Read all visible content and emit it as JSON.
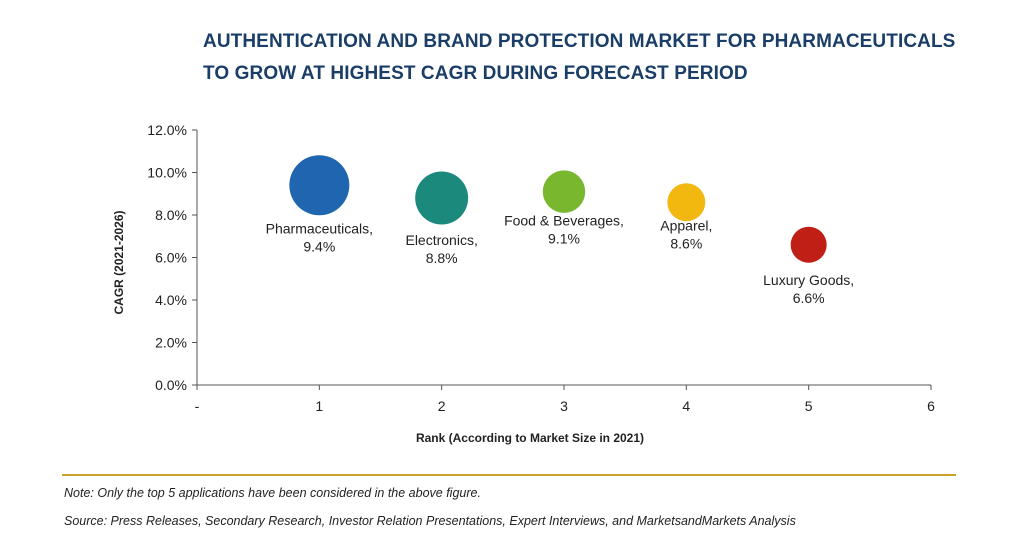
{
  "title_lines": [
    "AUTHENTICATION AND BRAND PROTECTION MARKET FOR PHARMACEUTICALS",
    "TO GROW AT HIGHEST CAGR DURING FORECAST PERIOD"
  ],
  "colors": {
    "title": "#1a3e67",
    "rule": "#c9a227"
  },
  "chart_data": {
    "type": "scatter",
    "bubble": true,
    "xlabel": "Rank (According to Market Size in 2021)",
    "ylabel": "CAGR (2021-2026)",
    "x_ticks": [
      "-",
      "1",
      "2",
      "3",
      "4",
      "5",
      "6"
    ],
    "xlim": [
      0,
      6
    ],
    "y_ticks": [
      "0.0%",
      "2.0%",
      "4.0%",
      "6.0%",
      "8.0%",
      "10.0%",
      "12.0%"
    ],
    "ylim": [
      0,
      12
    ],
    "grid": false,
    "points": [
      {
        "x": 1,
        "y": 9.4,
        "size": 1.0,
        "name": "Pharmaceuticals,",
        "value_label": "9.4%",
        "color": "#1f65b0"
      },
      {
        "x": 2,
        "y": 8.8,
        "size": 0.78,
        "name": "Electronics,",
        "value_label": "8.8%",
        "color": "#1b8a7d"
      },
      {
        "x": 3,
        "y": 9.1,
        "size": 0.5,
        "name": "Food & Beverages,",
        "value_label": "9.1%",
        "color": "#79b72e"
      },
      {
        "x": 4,
        "y": 8.6,
        "size": 0.4,
        "name": "Apparel,",
        "value_label": "8.6%",
        "color": "#f2b80f"
      },
      {
        "x": 5,
        "y": 6.6,
        "size": 0.36,
        "name": "Luxury Goods,",
        "value_label": "6.6%",
        "color": "#c01f16"
      }
    ]
  },
  "notes": {
    "note": "Note: Only the top 5 applications have been considered in the above figure.",
    "source": "Source: Press Releases, Secondary Research, Investor Relation Presentations, Expert Interviews, and MarketsandMarkets Analysis"
  }
}
